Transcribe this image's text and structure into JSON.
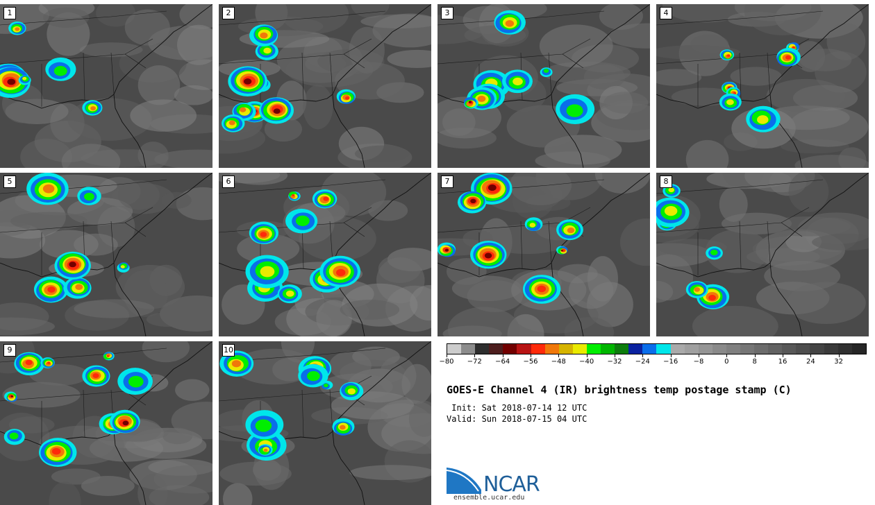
{
  "panels": [
    {
      "label": "1"
    },
    {
      "label": "2"
    },
    {
      "label": "3"
    },
    {
      "label": "4"
    },
    {
      "label": "5"
    },
    {
      "label": "6"
    },
    {
      "label": "7"
    },
    {
      "label": "8"
    },
    {
      "label": "9"
    },
    {
      "label": "10"
    }
  ],
  "colorbar": {
    "colors": [
      "#cccccc",
      "#8c8c8c",
      "#2e2e2e",
      "#4d1e1e",
      "#720000",
      "#b81414",
      "#ff2a0a",
      "#f0780a",
      "#d6b400",
      "#eaea00",
      "#00ee00",
      "#00b600",
      "#0d7d0d",
      "#0a22a0",
      "#0a6eea",
      "#00e6ea",
      "#aaaaaa",
      "#a0a0a0",
      "#959595",
      "#8a8a8a",
      "#808080",
      "#767676",
      "#6c6c6c",
      "#626262",
      "#585858",
      "#4e4e4e",
      "#444444",
      "#3a3a3a",
      "#303030",
      "#262626"
    ],
    "tick_values": [
      "−80",
      "−72",
      "−64",
      "−56",
      "−48",
      "−40",
      "−32",
      "−24",
      "−16",
      "−8",
      "0",
      "8",
      "16",
      "24",
      "32"
    ]
  },
  "title": "GOES-E Channel 4 (IR) brightness temp postage stamp (C)",
  "init": " Init: Sat 2018-07-14 12 UTC",
  "valid": "Valid: Sun 2018-07-15 04 UTC",
  "logo": {
    "name": "NCAR",
    "url": "ensemble.ucar.edu",
    "color": "#1f5f99"
  }
}
